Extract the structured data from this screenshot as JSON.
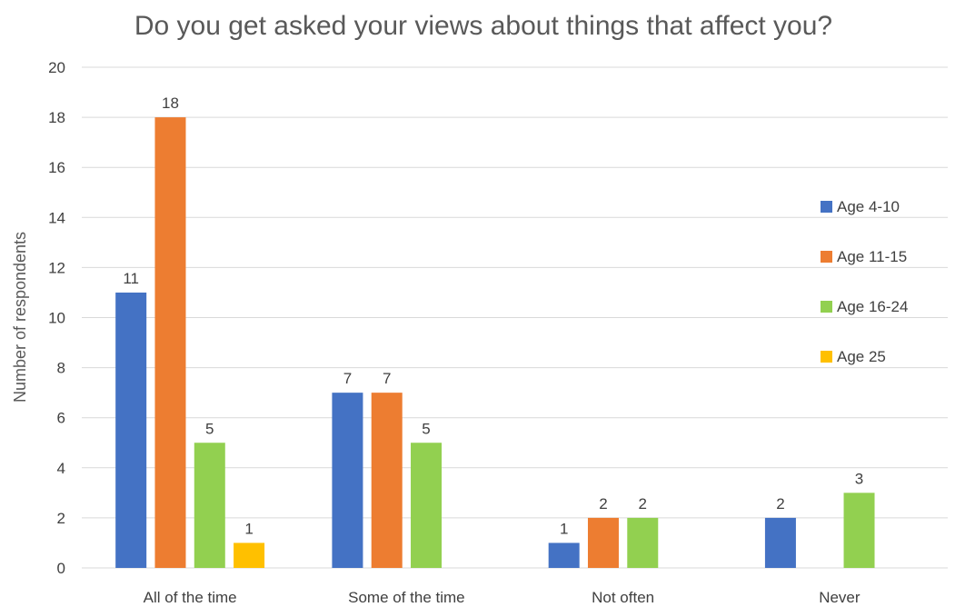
{
  "chart_data": {
    "type": "bar",
    "title": "Do you get asked your views about things that affect you?",
    "ylabel": "Number of respondents",
    "xlabel": "",
    "categories": [
      "All of the time",
      "Some of the time",
      "Not often",
      "Never"
    ],
    "series": [
      {
        "name": "Age 4-10",
        "color": "#4472c4",
        "values": [
          11,
          7,
          1,
          2
        ]
      },
      {
        "name": "Age 11-15",
        "color": "#ed7d31",
        "values": [
          18,
          7,
          2,
          null
        ]
      },
      {
        "name": "Age 16-24",
        "color": "#92d050",
        "values": [
          5,
          5,
          2,
          3
        ]
      },
      {
        "name": "Age 25",
        "color": "#ffc000",
        "values": [
          1,
          null,
          null,
          null
        ]
      }
    ],
    "ylim": [
      0,
      20
    ],
    "yticks": [
      0,
      2,
      4,
      6,
      8,
      10,
      12,
      14,
      16,
      18,
      20
    ],
    "grid": true,
    "legend_position": "right",
    "data_labels": true
  }
}
